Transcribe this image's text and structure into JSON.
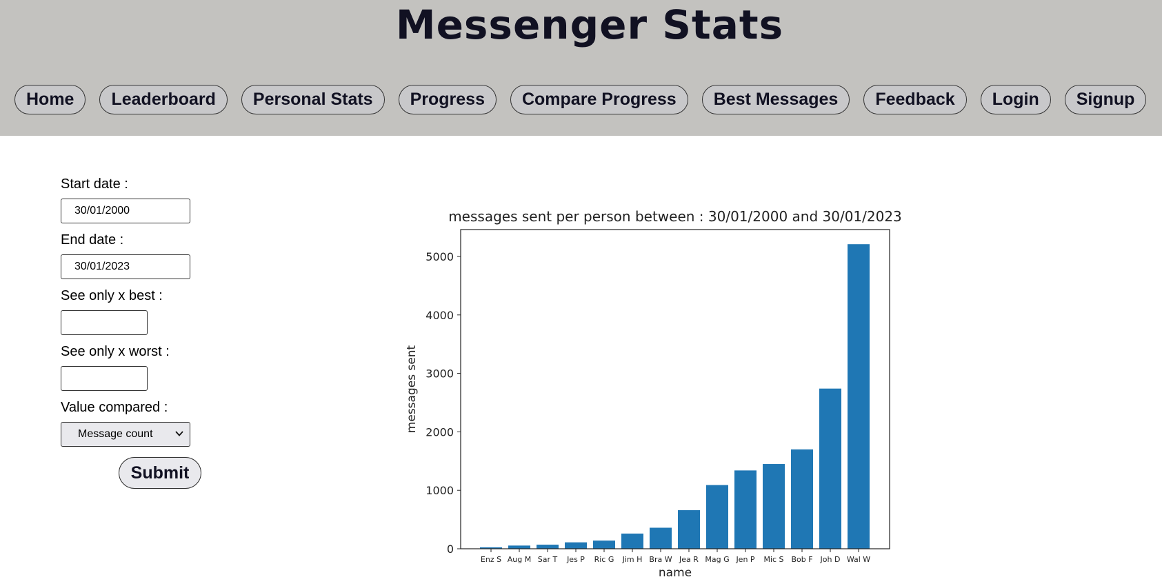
{
  "header": {
    "title": "Messenger Stats",
    "nav": [
      "Home",
      "Leaderboard",
      "Personal Stats",
      "Progress",
      "Compare Progress",
      "Best Messages",
      "Feedback",
      "Login",
      "Signup"
    ]
  },
  "form": {
    "start_date_label": "Start date :",
    "start_date_value": "30/01/2000",
    "end_date_label": "End date :",
    "end_date_value": "30/01/2023",
    "best_label": "See only x best :",
    "best_value": "",
    "worst_label": "See only x worst :",
    "worst_value": "",
    "value_compared_label": "Value compared :",
    "value_compared_selected": "Message count",
    "submit_label": "Submit"
  },
  "colors": {
    "header_bg": "#c3c2bf",
    "bar": "#1f77b4"
  },
  "chart_data": {
    "type": "bar",
    "title": "messages sent per person between : 30/01/2000 and 30/01/2023",
    "xlabel": "name",
    "ylabel": "messages sent",
    "categories": [
      "Enz S",
      "Aug M",
      "Sar T",
      "Jes P",
      "Ric G",
      "Jim H",
      "Bra W",
      "Jea R",
      "Mag G",
      "Jen P",
      "Mic S",
      "Bob F",
      "Joh D",
      "Wal W"
    ],
    "values": [
      25,
      55,
      70,
      110,
      140,
      260,
      360,
      660,
      1090,
      1340,
      1450,
      1700,
      2740,
      5210
    ],
    "yticks": [
      0,
      1000,
      2000,
      3000,
      4000,
      5000
    ],
    "ylim": [
      0,
      5460
    ],
    "grid": false
  }
}
